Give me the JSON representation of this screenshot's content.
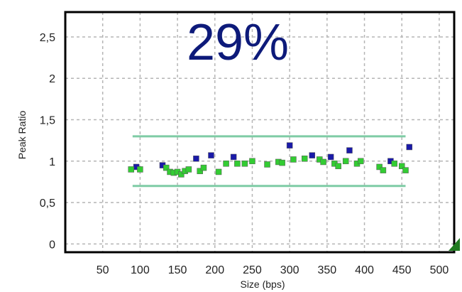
{
  "chart_data": {
    "type": "scatter",
    "annotation": "29%",
    "xlabel": "Size (bps)",
    "ylabel": "Peak Ratio",
    "xlim": [
      0,
      520
    ],
    "ylim": [
      -0.1,
      2.8
    ],
    "x_ticks": [
      50,
      100,
      150,
      200,
      250,
      300,
      350,
      400,
      450,
      500
    ],
    "y_ticks": [
      0,
      0.5,
      1,
      1.5,
      2,
      2.5
    ],
    "x_tick_labels": [
      "50",
      "100",
      "150",
      "200",
      "250",
      "300",
      "350",
      "400",
      "450",
      "500"
    ],
    "y_tick_labels": [
      "0",
      "0,5",
      "1",
      "1,5",
      "2",
      "2,5"
    ],
    "grid": true,
    "threshold_lines": [
      0.7,
      1.3
    ],
    "threshold_range": [
      90,
      455
    ],
    "series": [
      {
        "color": "#1a1aa8",
        "marker": "square",
        "points": [
          [
            95,
            0.93
          ],
          [
            130,
            0.95
          ],
          [
            175,
            1.03
          ],
          [
            195,
            1.07
          ],
          [
            225,
            1.05
          ],
          [
            300,
            1.19
          ],
          [
            330,
            1.07
          ],
          [
            355,
            1.05
          ],
          [
            380,
            1.13
          ],
          [
            435,
            1.0
          ],
          [
            460,
            1.17
          ]
        ]
      },
      {
        "color": "#33cc33",
        "marker": "square",
        "points": [
          [
            88,
            0.9
          ],
          [
            100,
            0.9
          ],
          [
            135,
            0.92
          ],
          [
            140,
            0.87
          ],
          [
            145,
            0.86
          ],
          [
            150,
            0.87
          ],
          [
            155,
            0.84
          ],
          [
            160,
            0.88
          ],
          [
            165,
            0.9
          ],
          [
            180,
            0.88
          ],
          [
            185,
            0.92
          ],
          [
            205,
            0.87
          ],
          [
            215,
            0.97
          ],
          [
            230,
            0.97
          ],
          [
            240,
            0.97
          ],
          [
            250,
            1.0
          ],
          [
            270,
            0.96
          ],
          [
            285,
            0.99
          ],
          [
            290,
            0.98
          ],
          [
            305,
            1.02
          ],
          [
            320,
            1.03
          ],
          [
            340,
            1.02
          ],
          [
            345,
            0.99
          ],
          [
            360,
            0.97
          ],
          [
            365,
            0.94
          ],
          [
            375,
            1.0
          ],
          [
            390,
            0.97
          ],
          [
            395,
            1.0
          ],
          [
            420,
            0.93
          ],
          [
            425,
            0.89
          ],
          [
            440,
            0.97
          ],
          [
            450,
            0.94
          ],
          [
            455,
            0.89
          ]
        ]
      }
    ],
    "colors": {
      "grid": "#b5b5b5",
      "threshold": "#7fcca5",
      "corner_marker": "#1f7a1f"
    }
  }
}
